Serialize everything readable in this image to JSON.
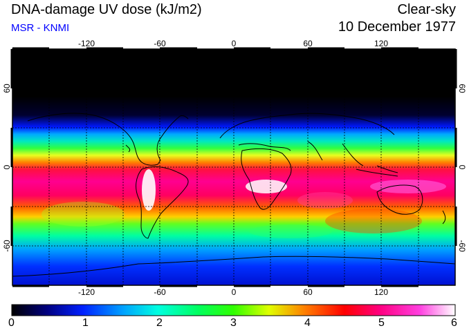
{
  "header": {
    "title": "DNA-damage UV dose (kJ/m2)",
    "source": "MSR - KNMI",
    "sky_condition": "Clear-sky",
    "date": "10 December 1977"
  },
  "axes": {
    "lon_ticks": [
      "-120",
      "-60",
      "0",
      "60",
      "120"
    ],
    "lat_ticks_left": [
      "60",
      "0",
      "-60"
    ],
    "lat_ticks_right": [
      "60",
      "0",
      "-60"
    ]
  },
  "colorbar": {
    "labels": [
      "0",
      "1",
      "2",
      "3",
      "4",
      "5",
      "6"
    ],
    "units": "kJ/m2"
  },
  "colors": {
    "subtitle": "#0000ff",
    "background": "#ffffff"
  }
}
